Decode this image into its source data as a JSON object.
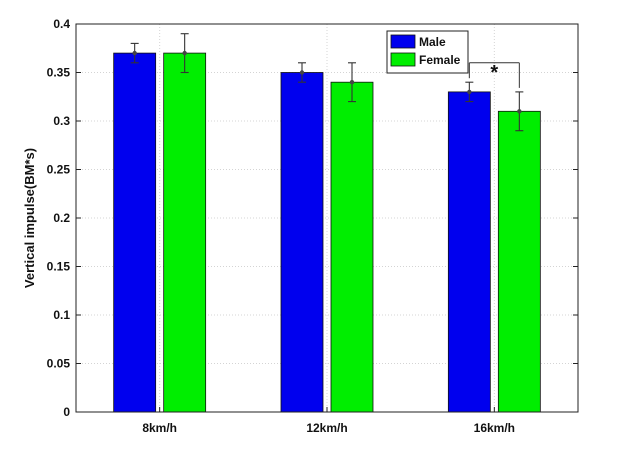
{
  "chart_data": {
    "type": "bar",
    "title": "",
    "xlabel": "",
    "ylabel": "Vertical impulse(BM*s)",
    "categories": [
      "8km/h",
      "12km/h",
      "16km/h"
    ],
    "ylim": [
      0,
      0.4
    ],
    "yticks": [
      "0",
      "0.05",
      "0.1",
      "0.15",
      "0.2",
      "0.25",
      "0.3",
      "0.35",
      "0.4"
    ],
    "grid": true,
    "legend_position": "top-center",
    "series": [
      {
        "name": "Male",
        "color": "#0000ee",
        "values": [
          0.37,
          0.35,
          0.33
        ],
        "error": [
          0.01,
          0.01,
          0.01
        ]
      },
      {
        "name": "Female",
        "color": "#00ee00",
        "values": [
          0.37,
          0.34,
          0.31
        ],
        "error": [
          0.02,
          0.02,
          0.02
        ]
      }
    ],
    "annotations": [
      {
        "text": "*",
        "category": "16km/h",
        "type": "significance-bracket",
        "y": 0.36
      }
    ]
  }
}
